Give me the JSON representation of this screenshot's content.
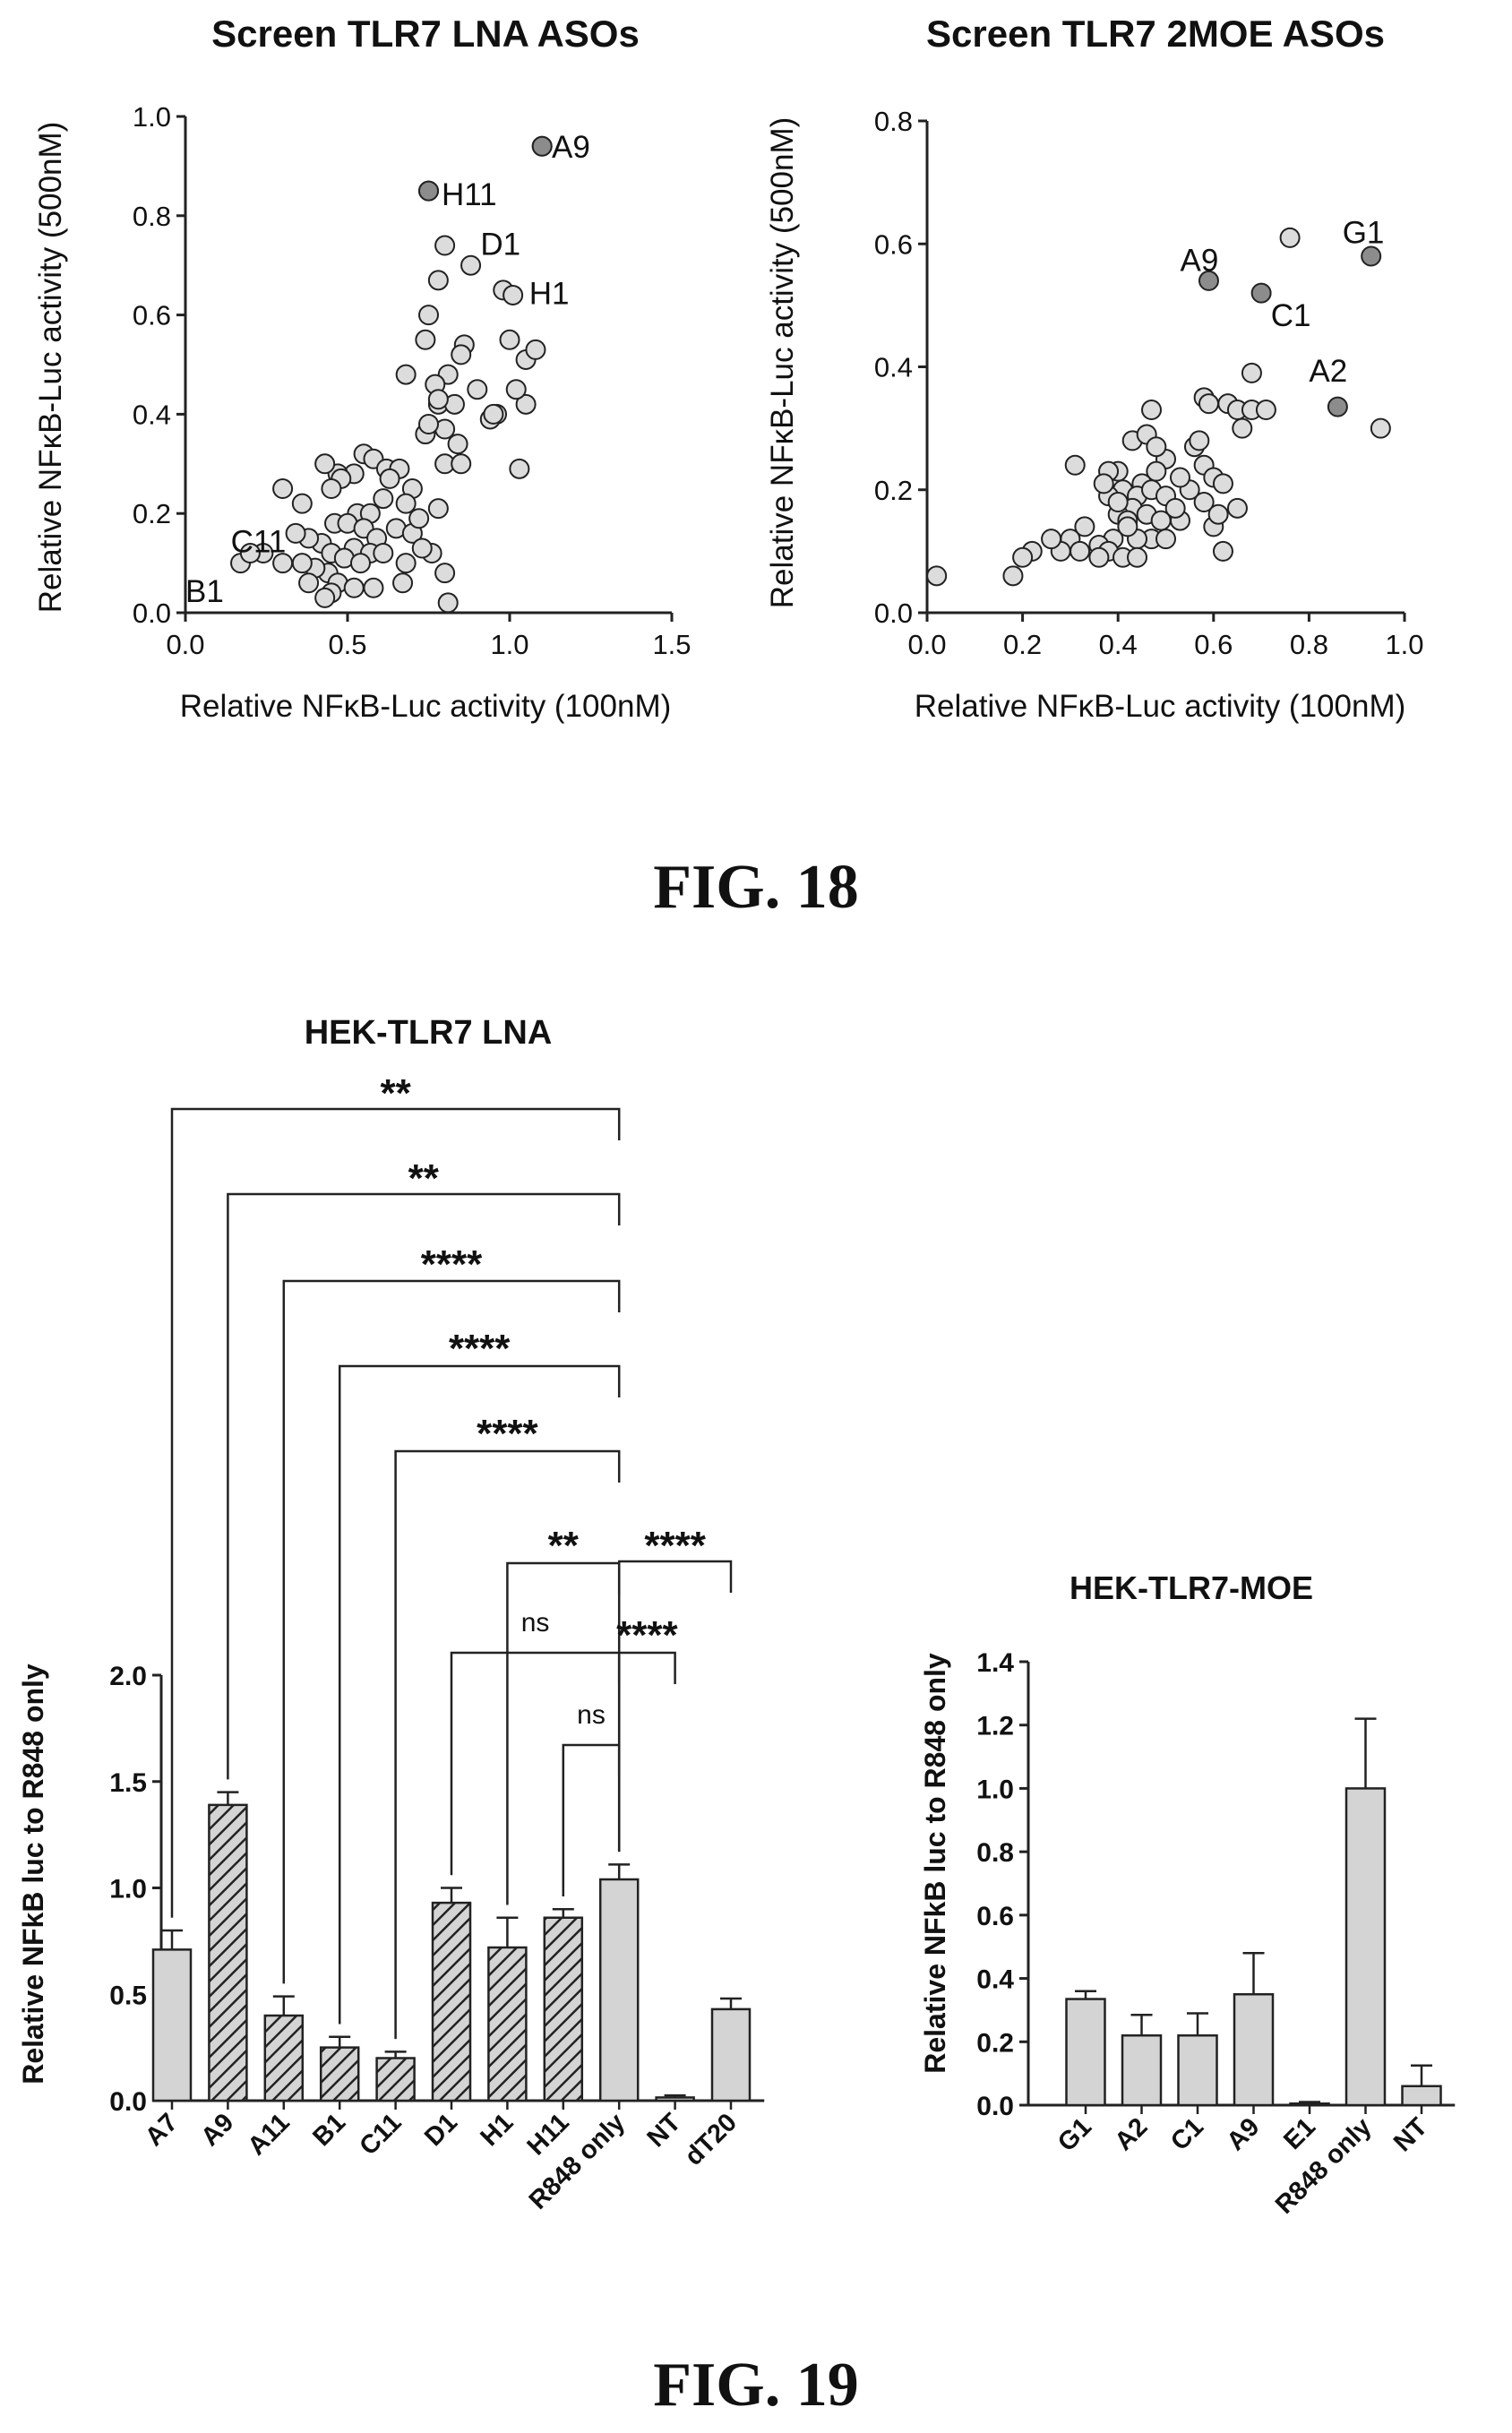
{
  "figures": {
    "fig18_caption": "FIG. 18",
    "fig19_caption": "FIG. 19"
  },
  "colors": {
    "marker_fill": "#dcdcdc",
    "highlight_fill": "#8c8c8c",
    "bar_fill": "#d4d4d4",
    "stroke": "#222222"
  },
  "chart_data": [
    {
      "id": "lna_scatter",
      "type": "scatter",
      "title": "Screen TLR7 LNA ASOs",
      "xlabel": "Relative NFκB-Luc activity (100nM)",
      "ylabel": "Relative NFκB-Luc activity (500nM)",
      "xlim": [
        0,
        1.5
      ],
      "ylim": [
        0,
        1.0
      ],
      "xticks": [
        "0.0",
        "0.5",
        "1.0",
        "1.5"
      ],
      "yticks": [
        "0.0",
        "0.2",
        "0.4",
        "0.6",
        "0.8",
        "1.0"
      ],
      "points": [
        [
          1.1,
          0.94
        ],
        [
          0.75,
          0.85
        ],
        [
          0.8,
          0.74
        ],
        [
          0.88,
          0.7
        ],
        [
          0.98,
          0.65
        ],
        [
          1.01,
          0.64
        ],
        [
          0.78,
          0.67
        ],
        [
          0.75,
          0.6
        ],
        [
          1.0,
          0.55
        ],
        [
          1.05,
          0.51
        ],
        [
          1.08,
          0.53
        ],
        [
          0.86,
          0.54
        ],
        [
          0.85,
          0.52
        ],
        [
          0.74,
          0.55
        ],
        [
          0.81,
          0.48
        ],
        [
          0.77,
          0.46
        ],
        [
          0.9,
          0.45
        ],
        [
          0.78,
          0.42
        ],
        [
          0.83,
          0.42
        ],
        [
          0.78,
          0.43
        ],
        [
          0.68,
          0.48
        ],
        [
          0.74,
          0.36
        ],
        [
          0.8,
          0.37
        ],
        [
          0.96,
          0.4
        ],
        [
          0.94,
          0.39
        ],
        [
          1.05,
          0.42
        ],
        [
          1.02,
          0.45
        ],
        [
          0.95,
          0.4
        ],
        [
          0.8,
          0.3
        ],
        [
          0.85,
          0.3
        ],
        [
          1.03,
          0.29
        ],
        [
          0.75,
          0.38
        ],
        [
          0.84,
          0.34
        ],
        [
          0.55,
          0.32
        ],
        [
          0.58,
          0.31
        ],
        [
          0.62,
          0.29
        ],
        [
          0.52,
          0.28
        ],
        [
          0.47,
          0.28
        ],
        [
          0.3,
          0.25
        ],
        [
          0.43,
          0.3
        ],
        [
          0.48,
          0.27
        ],
        [
          0.45,
          0.25
        ],
        [
          0.66,
          0.29
        ],
        [
          0.63,
          0.27
        ],
        [
          0.61,
          0.23
        ],
        [
          0.7,
          0.25
        ],
        [
          0.68,
          0.22
        ],
        [
          0.53,
          0.2
        ],
        [
          0.57,
          0.2
        ],
        [
          0.46,
          0.18
        ],
        [
          0.5,
          0.18
        ],
        [
          0.36,
          0.22
        ],
        [
          0.55,
          0.17
        ],
        [
          0.59,
          0.15
        ],
        [
          0.65,
          0.17
        ],
        [
          0.7,
          0.16
        ],
        [
          0.72,
          0.19
        ],
        [
          0.78,
          0.21
        ],
        [
          0.42,
          0.14
        ],
        [
          0.38,
          0.15
        ],
        [
          0.34,
          0.16
        ],
        [
          0.45,
          0.12
        ],
        [
          0.52,
          0.13
        ],
        [
          0.49,
          0.11
        ],
        [
          0.57,
          0.12
        ],
        [
          0.61,
          0.12
        ],
        [
          0.54,
          0.1
        ],
        [
          0.44,
          0.08
        ],
        [
          0.4,
          0.09
        ],
        [
          0.36,
          0.1
        ],
        [
          0.3,
          0.1
        ],
        [
          0.47,
          0.06
        ],
        [
          0.52,
          0.05
        ],
        [
          0.38,
          0.06
        ],
        [
          0.45,
          0.04
        ],
        [
          0.43,
          0.03
        ],
        [
          0.58,
          0.05
        ],
        [
          0.67,
          0.06
        ],
        [
          0.76,
          0.12
        ],
        [
          0.8,
          0.08
        ],
        [
          0.81,
          0.02
        ],
        [
          0.73,
          0.13
        ],
        [
          0.68,
          0.1
        ],
        [
          0.17,
          0.1
        ],
        [
          0.24,
          0.12
        ],
        [
          0.2,
          0.12
        ]
      ],
      "highlight": [
        [
          1.1,
          0.94
        ],
        [
          0.75,
          0.85
        ]
      ],
      "annotations": [
        {
          "text": "A9",
          "x": 1.13,
          "y": 0.94
        },
        {
          "text": "H11",
          "x": 0.79,
          "y": 0.845
        },
        {
          "text": "D1",
          "x": 0.91,
          "y": 0.745
        },
        {
          "text": "H1",
          "x": 1.06,
          "y": 0.645
        },
        {
          "text": "C11",
          "x": 0.14,
          "y": 0.145
        },
        {
          "text": "B1",
          "x": 0.0,
          "y": 0.045
        }
      ]
    },
    {
      "id": "moe_scatter",
      "type": "scatter",
      "title": "Screen TLR7 2MOE ASOs",
      "xlabel": "Relative NFκB-Luc activity (100nM)",
      "ylabel": "Relative NFκB-Luc activity (500nM)",
      "xlim": [
        0,
        1.0
      ],
      "ylim": [
        0,
        0.8
      ],
      "xticks": [
        "0.0",
        "0.2",
        "0.4",
        "0.6",
        "0.8",
        "1.0"
      ],
      "yticks": [
        "0.0",
        "0.2",
        "0.4",
        "0.6",
        "0.8"
      ],
      "points": [
        [
          0.76,
          0.61
        ],
        [
          0.95,
          0.3
        ],
        [
          0.68,
          0.39
        ],
        [
          0.58,
          0.35
        ],
        [
          0.63,
          0.34
        ],
        [
          0.65,
          0.33
        ],
        [
          0.59,
          0.34
        ],
        [
          0.68,
          0.33
        ],
        [
          0.71,
          0.33
        ],
        [
          0.66,
          0.3
        ],
        [
          0.56,
          0.27
        ],
        [
          0.58,
          0.24
        ],
        [
          0.6,
          0.22
        ],
        [
          0.62,
          0.21
        ],
        [
          0.55,
          0.2
        ],
        [
          0.58,
          0.18
        ],
        [
          0.65,
          0.17
        ],
        [
          0.53,
          0.15
        ],
        [
          0.6,
          0.14
        ],
        [
          0.62,
          0.1
        ],
        [
          0.5,
          0.25
        ],
        [
          0.53,
          0.22
        ],
        [
          0.48,
          0.23
        ],
        [
          0.45,
          0.21
        ],
        [
          0.4,
          0.23
        ],
        [
          0.41,
          0.2
        ],
        [
          0.44,
          0.19
        ],
        [
          0.47,
          0.2
        ],
        [
          0.5,
          0.19
        ],
        [
          0.52,
          0.17
        ],
        [
          0.43,
          0.17
        ],
        [
          0.38,
          0.19
        ],
        [
          0.4,
          0.16
        ],
        [
          0.42,
          0.15
        ],
        [
          0.46,
          0.16
        ],
        [
          0.49,
          0.15
        ],
        [
          0.47,
          0.12
        ],
        [
          0.5,
          0.12
        ],
        [
          0.44,
          0.12
        ],
        [
          0.39,
          0.12
        ],
        [
          0.36,
          0.11
        ],
        [
          0.38,
          0.1
        ],
        [
          0.41,
          0.09
        ],
        [
          0.44,
          0.09
        ],
        [
          0.33,
          0.14
        ],
        [
          0.3,
          0.12
        ],
        [
          0.32,
          0.1
        ],
        [
          0.36,
          0.09
        ],
        [
          0.28,
          0.1
        ],
        [
          0.26,
          0.12
        ],
        [
          0.22,
          0.1
        ],
        [
          0.2,
          0.09
        ],
        [
          0.18,
          0.06
        ],
        [
          0.31,
          0.24
        ],
        [
          0.38,
          0.23
        ],
        [
          0.37,
          0.21
        ],
        [
          0.43,
          0.28
        ],
        [
          0.46,
          0.29
        ],
        [
          0.48,
          0.27
        ],
        [
          0.47,
          0.33
        ],
        [
          0.57,
          0.28
        ],
        [
          0.4,
          0.18
        ],
        [
          0.42,
          0.14
        ],
        [
          0.02,
          0.06
        ],
        [
          0.61,
          0.16
        ]
      ],
      "highlight": [
        [
          0.93,
          0.58
        ],
        [
          0.59,
          0.54
        ],
        [
          0.7,
          0.52
        ],
        [
          0.86,
          0.335
        ]
      ],
      "annotations": [
        {
          "text": "G1",
          "x": 0.87,
          "y": 0.62
        },
        {
          "text": "A9",
          "x": 0.53,
          "y": 0.575
        },
        {
          "text": "C1",
          "x": 0.72,
          "y": 0.485
        },
        {
          "text": "A2",
          "x": 0.8,
          "y": 0.395
        }
      ]
    },
    {
      "id": "lna_bar",
      "type": "bar",
      "title": "HEK-TLR7 LNA",
      "ylabel": "Relative NFkB luc to R848 only",
      "ylim": [
        0,
        2.0
      ],
      "yticks": [
        "0.0",
        "0.5",
        "1.0",
        "1.5",
        "2.0"
      ],
      "categories": [
        "A7",
        "A9",
        "A11",
        "B1",
        "C11",
        "D1",
        "H1",
        "H11",
        "R848 only",
        "NT",
        "dT20"
      ],
      "values": [
        0.71,
        1.39,
        0.4,
        0.25,
        0.2,
        0.93,
        0.72,
        0.86,
        1.04,
        0.015,
        0.43
      ],
      "errors": [
        0.09,
        0.06,
        0.09,
        0.05,
        0.03,
        0.07,
        0.14,
        0.04,
        0.07,
        0.01,
        0.05
      ],
      "hatched": [
        false,
        true,
        true,
        true,
        true,
        true,
        true,
        true,
        false,
        false,
        false
      ],
      "comparisons": [
        {
          "from": 0,
          "to": 8,
          "label": "**"
        },
        {
          "from": 1,
          "to": 8,
          "label": "**"
        },
        {
          "from": 2,
          "to": 8,
          "label": "****"
        },
        {
          "from": 3,
          "to": 8,
          "label": "****"
        },
        {
          "from": 4,
          "to": 8,
          "label": "****"
        },
        {
          "from": 6,
          "to": 8,
          "label": "**"
        },
        {
          "from": 5,
          "to": 8,
          "label": "ns"
        },
        {
          "from": 7,
          "to": 8,
          "label": "ns"
        },
        {
          "from": 8,
          "to": 10,
          "label": "****"
        },
        {
          "from": 8,
          "to": 9,
          "label": "****"
        }
      ]
    },
    {
      "id": "moe_bar",
      "type": "bar",
      "title": "HEK-TLR7-MOE",
      "ylabel": "Relative NFkB luc to R848 only",
      "ylim": [
        0,
        1.4
      ],
      "yticks": [
        "0.0",
        "0.2",
        "0.4",
        "0.6",
        "0.8",
        "1.0",
        "1.2",
        "1.4"
      ],
      "categories": [
        "G1",
        "A2",
        "C1",
        "A9",
        "E1",
        "R848 only",
        "NT"
      ],
      "values": [
        0.335,
        0.22,
        0.22,
        0.35,
        0.005,
        1.0,
        0.06
      ],
      "errors": [
        0.025,
        0.065,
        0.07,
        0.13,
        0.005,
        0.22,
        0.065
      ]
    }
  ]
}
